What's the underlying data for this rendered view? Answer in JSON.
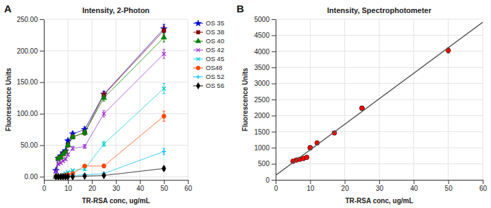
{
  "chart_data": [
    {
      "type": "line",
      "title": "Intensity, 2-Photon",
      "xlabel": "TR-RSA conc, ug/mL",
      "ylabel": "Fluorescence Units",
      "annotations": [
        "A"
      ],
      "xlim": [
        0,
        60
      ],
      "ylim": [
        -5,
        250
      ],
      "xticks": [
        0,
        10,
        20,
        30,
        40,
        50,
        60
      ],
      "yticks": [
        {
          "value": 0,
          "label": "0.00"
        },
        {
          "value": 50,
          "label": "50.00"
        },
        {
          "value": 100,
          "label": "100.00"
        },
        {
          "value": 150,
          "label": "150.00"
        },
        {
          "value": 200,
          "label": "200.00"
        },
        {
          "value": 250,
          "label": "250.00"
        }
      ],
      "grid": true,
      "legend": "right",
      "x": [
        5,
        6,
        7,
        8,
        9,
        10,
        12,
        17,
        25,
        50
      ],
      "series": [
        {
          "name": "OS 35",
          "color": "#0000CC",
          "marker": "star",
          "values": [
            10,
            29,
            33,
            38,
            41,
            57,
            68,
            75,
            131,
            235
          ],
          "yerr": [
            1,
            2,
            2,
            2,
            2,
            3,
            3,
            4,
            5,
            7
          ]
        },
        {
          "name": "OS 38",
          "color": "#8B0000",
          "marker": "square",
          "values": [
            0,
            29,
            31,
            36,
            39,
            50,
            63,
            70,
            130,
            232
          ],
          "yerr": [
            0.5,
            2,
            2,
            2,
            2,
            3,
            3,
            4,
            5,
            7
          ]
        },
        {
          "name": "OS 40",
          "color": "#008000",
          "marker": "triangle",
          "values": [
            0,
            29,
            31,
            36,
            39,
            50,
            63,
            70,
            125,
            221
          ],
          "yerr": [
            0.5,
            2,
            2,
            2,
            2,
            3,
            3,
            4,
            5,
            7
          ]
        },
        {
          "name": "OS 42",
          "color": "#9932CC",
          "marker": "x",
          "values": [
            8,
            20,
            22,
            25,
            28,
            35,
            45,
            48,
            100,
            195
          ],
          "yerr": [
            1,
            1.5,
            1.5,
            1.5,
            2,
            2,
            3,
            3,
            5,
            7
          ]
        },
        {
          "name": "OS 45",
          "color": "#00CED1",
          "marker": "x",
          "values": [
            0,
            0,
            0,
            3,
            5,
            7,
            10,
            12,
            52,
            140
          ],
          "yerr": [
            0.3,
            0.3,
            0.3,
            0.5,
            0.5,
            1,
            1,
            2,
            4,
            8
          ]
        },
        {
          "name": "OS48",
          "color": "#FF4500",
          "marker": "circle",
          "values": [
            0,
            0,
            0,
            1,
            2,
            3,
            5,
            17,
            17,
            96
          ],
          "yerr": [
            0.3,
            0.3,
            0.3,
            0.3,
            0.5,
            0.5,
            1,
            2,
            3,
            8
          ]
        },
        {
          "name": "OS 52",
          "color": "#00BFFF",
          "marker": "plus",
          "values": [
            0,
            0,
            0,
            0,
            0,
            0,
            2,
            3,
            5,
            40
          ],
          "yerr": [
            0.2,
            0.2,
            0.2,
            0.2,
            0.2,
            0.2,
            0.5,
            1,
            2,
            5
          ]
        },
        {
          "name": "OS 56",
          "color": "#000000",
          "marker": "diamond",
          "values": [
            0,
            0,
            0,
            0,
            0,
            0,
            0,
            1,
            2,
            13
          ],
          "yerr": [
            0.2,
            0.2,
            0.2,
            0.2,
            0.2,
            0.2,
            0.2,
            0.5,
            1,
            3
          ]
        }
      ]
    },
    {
      "type": "scatter",
      "title": "Intensity, Spectrophotometer",
      "xlabel": "TR-RSA conc, ug/mL",
      "ylabel": "Fluorescence Units",
      "annotations": [
        "B"
      ],
      "xlim": [
        0,
        60
      ],
      "ylim": [
        0,
        5000
      ],
      "xticks": [
        0,
        10,
        20,
        30,
        40,
        50,
        60
      ],
      "yticks": [
        0,
        500,
        1000,
        1500,
        2000,
        2500,
        3000,
        3500,
        4000,
        4500,
        5000
      ],
      "grid": true,
      "series": [
        {
          "type": "scatter",
          "color": "#FF0000",
          "marker": "circle",
          "x": [
            5,
            6,
            7,
            8,
            9,
            10,
            10,
            12,
            17,
            25,
            25,
            50
          ],
          "values": [
            580,
            615,
            640,
            665,
            700,
            1000,
            1000,
            1150,
            1460,
            2230,
            2230,
            4030
          ],
          "yerr": [
            25,
            20,
            20,
            20,
            20,
            25,
            25,
            30,
            40,
            60,
            60,
            80
          ]
        },
        {
          "type": "line",
          "color": "#555555",
          "line_style": "solid",
          "x": [
            0,
            60
          ],
          "values": [
            139.741,
            4908.145
          ]
        }
      ]
    }
  ]
}
